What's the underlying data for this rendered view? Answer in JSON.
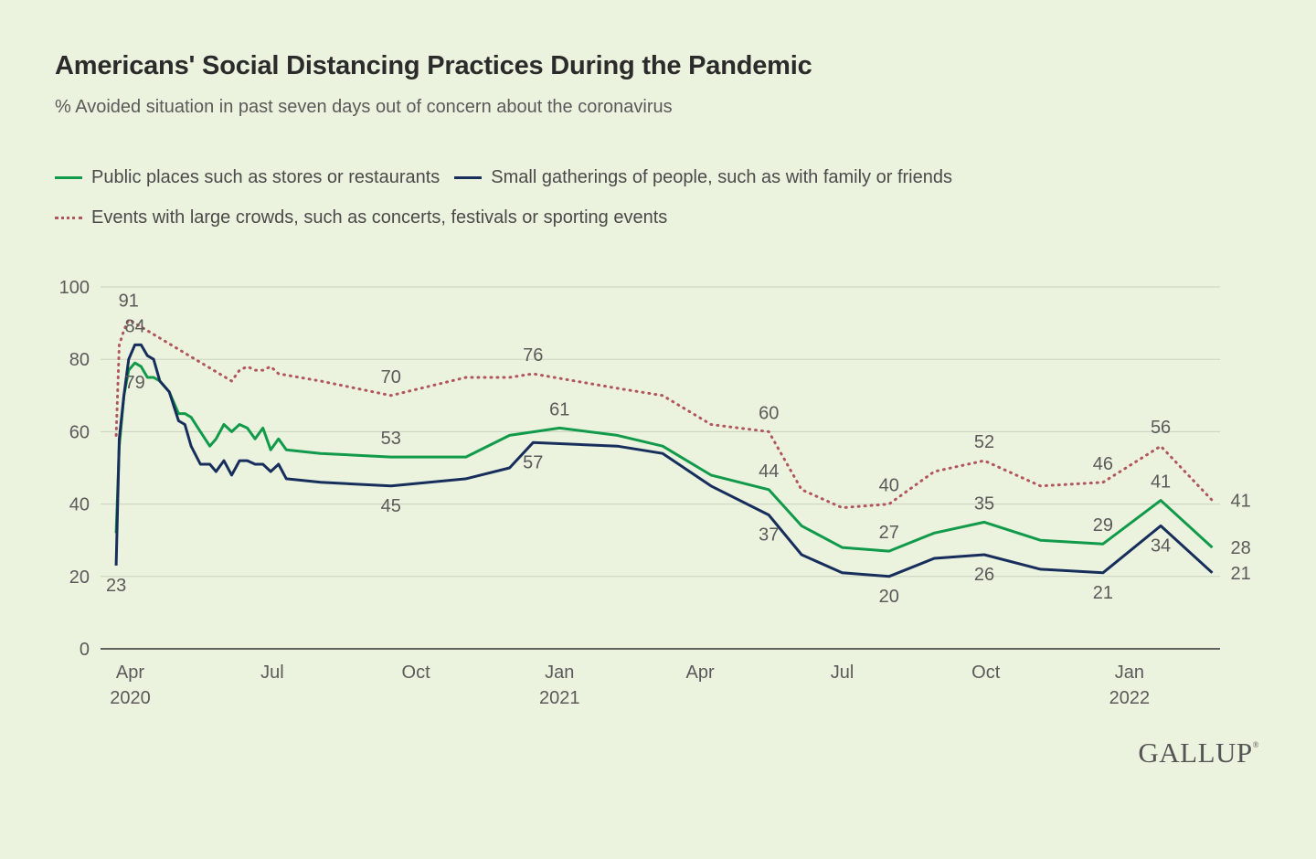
{
  "title": "Americans' Social Distancing Practices During the Pandemic",
  "subtitle": "% Avoided situation in past seven days out of concern about the coronavirus",
  "legend": [
    {
      "name": "Public places such as stores or restaurants",
      "color": "#109a4a",
      "style": "solid"
    },
    {
      "name": "Small gatherings of people, such as with family or friends",
      "color": "#172e5c",
      "style": "solid"
    },
    {
      "name": "Events with large crowds, such as concerts, festivals or sporting events",
      "color": "#b1555e",
      "style": "dotted"
    }
  ],
  "logo": "GALLUP",
  "chart_data": {
    "type": "line",
    "ylim": [
      0,
      100
    ],
    "yticks": [
      0,
      20,
      40,
      60,
      80,
      100
    ],
    "xlim": [
      "2020-03-13",
      "2022-02-28"
    ],
    "grid": true,
    "legend_position": "top",
    "xticks": [
      {
        "date": "2020-04-01",
        "label": "Apr",
        "year": "2020"
      },
      {
        "date": "2020-07-01",
        "label": "Jul",
        "year": ""
      },
      {
        "date": "2020-10-01",
        "label": "Oct",
        "year": ""
      },
      {
        "date": "2021-01-01",
        "label": "Jan",
        "year": "2021"
      },
      {
        "date": "2021-04-01",
        "label": "Apr",
        "year": ""
      },
      {
        "date": "2021-07-01",
        "label": "Jul",
        "year": ""
      },
      {
        "date": "2021-10-01",
        "label": "Oct",
        "year": ""
      },
      {
        "date": "2022-01-01",
        "label": "Jan",
        "year": "2022"
      }
    ],
    "series": [
      {
        "name": "Public places such as stores or restaurants",
        "color": "#109a4a",
        "style": "solid",
        "points": [
          [
            "2020-03-23",
            32
          ],
          [
            "2020-03-25",
            56
          ],
          [
            "2020-03-28",
            70
          ],
          [
            "2020-03-31",
            77
          ],
          [
            "2020-04-04",
            79
          ],
          [
            "2020-04-08",
            78
          ],
          [
            "2020-04-12",
            75
          ],
          [
            "2020-04-16",
            75
          ],
          [
            "2020-04-20",
            74
          ],
          [
            "2020-04-26",
            71
          ],
          [
            "2020-05-02",
            65
          ],
          [
            "2020-05-06",
            65
          ],
          [
            "2020-05-10",
            64
          ],
          [
            "2020-05-16",
            60
          ],
          [
            "2020-05-22",
            56
          ],
          [
            "2020-05-26",
            58
          ],
          [
            "2020-05-31",
            62
          ],
          [
            "2020-06-05",
            60
          ],
          [
            "2020-06-10",
            62
          ],
          [
            "2020-06-15",
            61
          ],
          [
            "2020-06-20",
            58
          ],
          [
            "2020-06-25",
            61
          ],
          [
            "2020-06-30",
            55
          ],
          [
            "2020-07-05",
            58
          ],
          [
            "2020-07-10",
            55
          ],
          [
            "2020-08-01",
            54
          ],
          [
            "2020-09-15",
            53
          ],
          [
            "2020-11-02",
            53
          ],
          [
            "2020-11-30",
            59
          ],
          [
            "2021-01-01",
            61
          ],
          [
            "2021-02-07",
            59
          ],
          [
            "2021-03-08",
            56
          ],
          [
            "2021-04-08",
            48
          ],
          [
            "2021-05-15",
            44
          ],
          [
            "2021-06-05",
            34
          ],
          [
            "2021-07-01",
            28
          ],
          [
            "2021-07-31",
            27
          ],
          [
            "2021-08-29",
            32
          ],
          [
            "2021-09-30",
            35
          ],
          [
            "2021-11-05",
            30
          ],
          [
            "2021-12-15",
            29
          ],
          [
            "2022-01-21",
            41
          ],
          [
            "2022-02-23",
            28
          ]
        ],
        "labels": [
          {
            "date": "2020-04-04",
            "value": 79,
            "pos": "below"
          },
          {
            "date": "2020-09-15",
            "value": 53,
            "pos": "above"
          },
          {
            "date": "2021-01-01",
            "value": 61,
            "pos": "above"
          },
          {
            "date": "2021-05-15",
            "value": 44,
            "pos": "above"
          },
          {
            "date": "2021-07-31",
            "value": 27,
            "pos": "above"
          },
          {
            "date": "2021-09-30",
            "value": 35,
            "pos": "above"
          },
          {
            "date": "2021-12-15",
            "value": 29,
            "pos": "above"
          },
          {
            "date": "2022-01-21",
            "value": 41,
            "pos": "above"
          },
          {
            "date": "2022-02-23",
            "value": 28,
            "pos": "right"
          }
        ]
      },
      {
        "name": "Small gatherings of people, such as with family or friends",
        "color": "#172e5c",
        "style": "solid",
        "points": [
          [
            "2020-03-23",
            23
          ],
          [
            "2020-03-25",
            58
          ],
          [
            "2020-03-28",
            70
          ],
          [
            "2020-03-31",
            80
          ],
          [
            "2020-04-04",
            84
          ],
          [
            "2020-04-08",
            84
          ],
          [
            "2020-04-12",
            81
          ],
          [
            "2020-04-16",
            80
          ],
          [
            "2020-04-20",
            74
          ],
          [
            "2020-04-26",
            71
          ],
          [
            "2020-05-02",
            63
          ],
          [
            "2020-05-06",
            62
          ],
          [
            "2020-05-10",
            56
          ],
          [
            "2020-05-16",
            51
          ],
          [
            "2020-05-22",
            51
          ],
          [
            "2020-05-26",
            49
          ],
          [
            "2020-05-31",
            52
          ],
          [
            "2020-06-05",
            48
          ],
          [
            "2020-06-10",
            52
          ],
          [
            "2020-06-15",
            52
          ],
          [
            "2020-06-20",
            51
          ],
          [
            "2020-06-25",
            51
          ],
          [
            "2020-06-30",
            49
          ],
          [
            "2020-07-05",
            51
          ],
          [
            "2020-07-10",
            47
          ],
          [
            "2020-08-01",
            46
          ],
          [
            "2020-09-15",
            45
          ],
          [
            "2020-11-02",
            47
          ],
          [
            "2020-11-30",
            50
          ],
          [
            "2020-12-15",
            57
          ],
          [
            "2021-02-07",
            56
          ],
          [
            "2021-03-08",
            54
          ],
          [
            "2021-04-08",
            45
          ],
          [
            "2021-05-15",
            37
          ],
          [
            "2021-06-05",
            26
          ],
          [
            "2021-07-01",
            21
          ],
          [
            "2021-07-31",
            20
          ],
          [
            "2021-08-29",
            25
          ],
          [
            "2021-09-30",
            26
          ],
          [
            "2021-11-05",
            22
          ],
          [
            "2021-12-15",
            21
          ],
          [
            "2022-01-21",
            34
          ],
          [
            "2022-02-23",
            21
          ]
        ],
        "labels": [
          {
            "date": "2020-03-23",
            "value": 23,
            "pos": "below"
          },
          {
            "date": "2020-04-04",
            "value": 84,
            "pos": "above"
          },
          {
            "date": "2020-09-15",
            "value": 45,
            "pos": "below"
          },
          {
            "date": "2020-12-15",
            "value": 57,
            "pos": "below"
          },
          {
            "date": "2021-05-15",
            "value": 37,
            "pos": "below"
          },
          {
            "date": "2021-07-31",
            "value": 20,
            "pos": "below"
          },
          {
            "date": "2021-09-30",
            "value": 26,
            "pos": "below"
          },
          {
            "date": "2021-12-15",
            "value": 21,
            "pos": "below"
          },
          {
            "date": "2022-01-21",
            "value": 34,
            "pos": "below"
          },
          {
            "date": "2022-02-23",
            "value": 21,
            "pos": "right"
          }
        ]
      },
      {
        "name": "Events with large crowds, such as concerts, festivals or sporting events",
        "color": "#b1555e",
        "style": "dotted",
        "points": [
          [
            "2020-03-23",
            59
          ],
          [
            "2020-03-25",
            84
          ],
          [
            "2020-03-28",
            88
          ],
          [
            "2020-03-31",
            91
          ],
          [
            "2020-06-05",
            74
          ],
          [
            "2020-06-10",
            77
          ],
          [
            "2020-06-15",
            78
          ],
          [
            "2020-06-20",
            77
          ],
          [
            "2020-06-25",
            77
          ],
          [
            "2020-06-30",
            78
          ],
          [
            "2020-07-05",
            76
          ],
          [
            "2020-08-01",
            74
          ],
          [
            "2020-09-15",
            70
          ],
          [
            "2020-11-02",
            75
          ],
          [
            "2020-11-30",
            75
          ],
          [
            "2020-12-15",
            76
          ],
          [
            "2021-02-07",
            72
          ],
          [
            "2021-03-08",
            70
          ],
          [
            "2021-04-08",
            62
          ],
          [
            "2021-05-15",
            60
          ],
          [
            "2021-06-05",
            44
          ],
          [
            "2021-07-01",
            39
          ],
          [
            "2021-07-31",
            40
          ],
          [
            "2021-08-29",
            49
          ],
          [
            "2021-09-30",
            52
          ],
          [
            "2021-11-05",
            45
          ],
          [
            "2021-12-15",
            46
          ],
          [
            "2022-01-21",
            56
          ],
          [
            "2022-02-23",
            41
          ]
        ],
        "labels": [
          {
            "date": "2020-03-31",
            "value": 91,
            "pos": "above"
          },
          {
            "date": "2020-09-15",
            "value": 70,
            "pos": "above"
          },
          {
            "date": "2020-12-15",
            "value": 76,
            "pos": "above"
          },
          {
            "date": "2021-05-15",
            "value": 60,
            "pos": "above"
          },
          {
            "date": "2021-07-31",
            "value": 40,
            "pos": "above"
          },
          {
            "date": "2021-09-30",
            "value": 52,
            "pos": "above"
          },
          {
            "date": "2021-12-15",
            "value": 46,
            "pos": "above"
          },
          {
            "date": "2022-01-21",
            "value": 56,
            "pos": "above"
          },
          {
            "date": "2022-02-23",
            "value": 41,
            "pos": "right"
          }
        ]
      }
    ]
  }
}
